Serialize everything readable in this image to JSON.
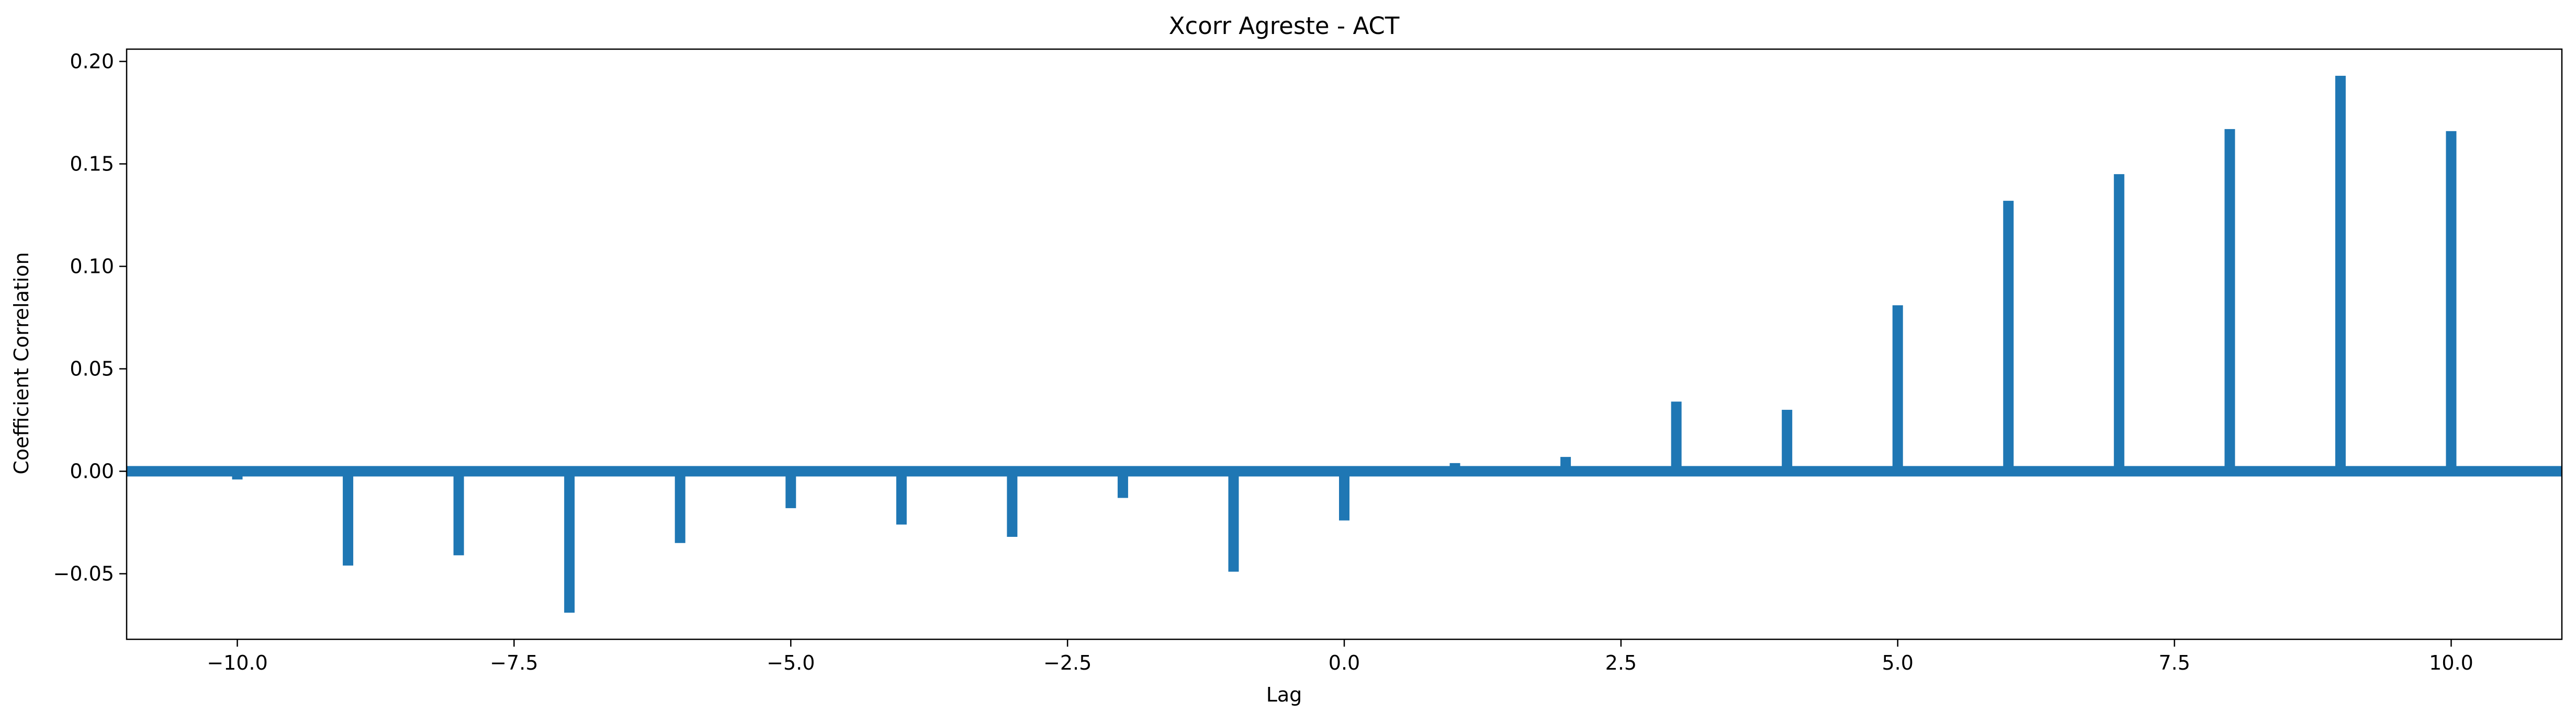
{
  "chart_data": {
    "type": "bar",
    "title": "Xcorr Agreste - ACT",
    "xlabel": "Lag",
    "ylabel": "Coefficient Correlation",
    "xlim": [
      -11,
      11
    ],
    "ylim": [
      -0.082,
      0.206
    ],
    "xticks": [
      -10.0,
      -7.5,
      -5.0,
      -2.5,
      0.0,
      2.5,
      5.0,
      7.5,
      10.0
    ],
    "xtick_labels": [
      "−10.0",
      "−7.5",
      "−5.0",
      "−2.5",
      "0.0",
      "2.5",
      "5.0",
      "7.5",
      "10.0"
    ],
    "yticks": [
      -0.05,
      0.0,
      0.05,
      0.1,
      0.15,
      0.2
    ],
    "ytick_labels": [
      "−0.05",
      "0.00",
      "0.05",
      "0.10",
      "0.15",
      "0.20"
    ],
    "series": [
      {
        "name": "xcorr",
        "color": "#1f77b4",
        "lags": [
          -10,
          -9,
          -8,
          -7,
          -6,
          -5,
          -4,
          -3,
          -2,
          -1,
          0,
          1,
          2,
          3,
          4,
          5,
          6,
          7,
          8,
          9,
          10
        ],
        "values": [
          -0.004,
          -0.046,
          -0.041,
          -0.069,
          -0.035,
          -0.018,
          -0.026,
          -0.032,
          -0.013,
          -0.049,
          -0.024,
          0.004,
          0.007,
          0.034,
          0.03,
          0.081,
          0.132,
          0.145,
          0.167,
          0.193,
          0.166
        ]
      }
    ],
    "baseline": 0.0,
    "grid": false,
    "legend": "none"
  }
}
